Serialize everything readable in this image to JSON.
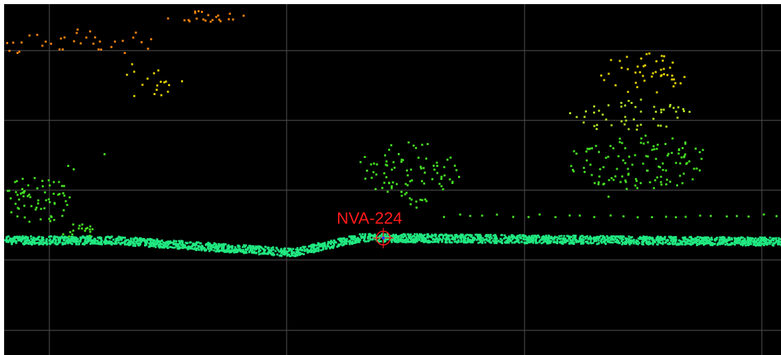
{
  "colors": {
    "background": "#000000",
    "grid": "#4a4a4a",
    "ground": "#20e880",
    "low_veg": "#44dd22",
    "mid_veg": "#aadd22",
    "high_veg": "#ddcc00",
    "top_veg": "#f08010",
    "marker": "#ff1a1a",
    "marker_center": "#2040ff"
  },
  "marker": {
    "label": "NVA-224",
    "icon": "crosshair-icon"
  }
}
